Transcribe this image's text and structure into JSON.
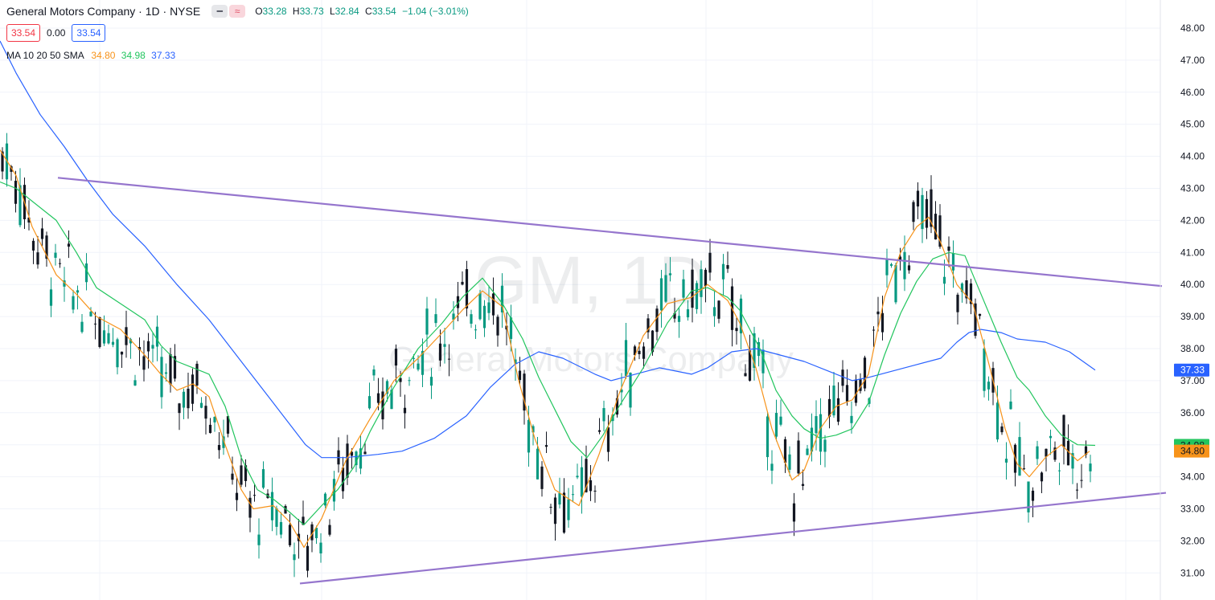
{
  "header": {
    "title": "General Motors Company · 1D · NYSE",
    "ohlc": {
      "o_label": "O",
      "o": "33.28",
      "h_label": "H",
      "h": "33.73",
      "l_label": "L",
      "l": "32.84",
      "c_label": "C",
      "c": "33.54",
      "change": "−1.04 (−3.01%)"
    },
    "bid": "33.54",
    "spread": "0.00",
    "ask": "33.54",
    "ma_label": "MA 10 20 50 SMA",
    "ma10": "34.80",
    "ma20": "34.98",
    "ma50": "37.33"
  },
  "watermark": {
    "ticker": "GM, 1D",
    "name": "General Motors Company"
  },
  "colors": {
    "up": "#089981",
    "down": "#131722",
    "ma10": "#f7931a",
    "ma20": "#22c55e",
    "ma50": "#2962ff",
    "trend": "#9575cd",
    "grid": "#f0f3fa"
  },
  "chart_data": {
    "type": "candlestick",
    "ylim": [
      30.6,
      48.3
    ],
    "y_ticks": [
      "48.00",
      "47.00",
      "46.00",
      "45.00",
      "44.00",
      "43.00",
      "42.00",
      "41.00",
      "40.00",
      "39.00",
      "38.00",
      "37.00",
      "36.00",
      "35.00",
      "34.00",
      "33.00",
      "32.00",
      "31.00"
    ],
    "ma10_path": [
      [
        0,
        44.2
      ],
      [
        20,
        43.4
      ],
      [
        40,
        41.8
      ],
      [
        70,
        40.3
      ],
      [
        95,
        39.7
      ],
      [
        120,
        39.0
      ],
      [
        150,
        38.6
      ],
      [
        180,
        37.8
      ],
      [
        200,
        37.2
      ],
      [
        220,
        36.7
      ],
      [
        240,
        36.9
      ],
      [
        260,
        36.5
      ],
      [
        280,
        35.0
      ],
      [
        300,
        33.6
      ],
      [
        315,
        33.0
      ],
      [
        340,
        33.1
      ],
      [
        360,
        32.6
      ],
      [
        378,
        31.8
      ],
      [
        400,
        32.7
      ],
      [
        430,
        34.5
      ],
      [
        460,
        35.8
      ],
      [
        490,
        37.0
      ],
      [
        520,
        37.7
      ],
      [
        550,
        38.5
      ],
      [
        575,
        39.2
      ],
      [
        600,
        39.8
      ],
      [
        625,
        39.3
      ],
      [
        645,
        37.0
      ],
      [
        665,
        35.2
      ],
      [
        690,
        33.6
      ],
      [
        720,
        33.1
      ],
      [
        745,
        34.7
      ],
      [
        770,
        36.6
      ],
      [
        800,
        38.4
      ],
      [
        830,
        39.4
      ],
      [
        860,
        39.6
      ],
      [
        880,
        40.0
      ],
      [
        905,
        39.5
      ],
      [
        920,
        38.8
      ],
      [
        940,
        37.4
      ],
      [
        960,
        35.5
      ],
      [
        985,
        33.9
      ],
      [
        1000,
        34.2
      ],
      [
        1020,
        35.5
      ],
      [
        1040,
        36.2
      ],
      [
        1060,
        36.4
      ],
      [
        1080,
        37.2
      ],
      [
        1100,
        39.6
      ],
      [
        1120,
        41.0
      ],
      [
        1140,
        41.8
      ],
      [
        1155,
        42.1
      ],
      [
        1170,
        41.3
      ],
      [
        1190,
        40.0
      ],
      [
        1210,
        39.4
      ],
      [
        1230,
        37.5
      ],
      [
        1250,
        35.5
      ],
      [
        1265,
        34.4
      ],
      [
        1280,
        34.0
      ],
      [
        1300,
        34.6
      ],
      [
        1320,
        35.0
      ],
      [
        1340,
        34.5
      ],
      [
        1355,
        34.8
      ]
    ],
    "ma20_path": [
      [
        0,
        43.2
      ],
      [
        20,
        43.0
      ],
      [
        40,
        42.6
      ],
      [
        70,
        42.0
      ],
      [
        95,
        41.0
      ],
      [
        120,
        39.9
      ],
      [
        150,
        39.4
      ],
      [
        180,
        38.9
      ],
      [
        200,
        38.1
      ],
      [
        220,
        37.6
      ],
      [
        240,
        37.4
      ],
      [
        260,
        37.2
      ],
      [
        280,
        36.2
      ],
      [
        300,
        34.6
      ],
      [
        320,
        33.6
      ],
      [
        340,
        33.3
      ],
      [
        360,
        32.9
      ],
      [
        378,
        32.5
      ],
      [
        400,
        33.1
      ],
      [
        420,
        33.6
      ],
      [
        440,
        34.3
      ],
      [
        460,
        35.4
      ],
      [
        490,
        36.8
      ],
      [
        520,
        38.0
      ],
      [
        550,
        38.8
      ],
      [
        575,
        39.6
      ],
      [
        600,
        40.2
      ],
      [
        625,
        39.4
      ],
      [
        650,
        38.3
      ],
      [
        670,
        37.1
      ],
      [
        690,
        36.1
      ],
      [
        710,
        35.1
      ],
      [
        730,
        34.6
      ],
      [
        750,
        35.3
      ],
      [
        770,
        36.2
      ],
      [
        800,
        37.4
      ],
      [
        830,
        38.8
      ],
      [
        860,
        39.8
      ],
      [
        880,
        39.9
      ],
      [
        905,
        39.6
      ],
      [
        920,
        39.2
      ],
      [
        945,
        38.0
      ],
      [
        965,
        36.7
      ],
      [
        985,
        35.9
      ],
      [
        1000,
        35.5
      ],
      [
        1020,
        35.2
      ],
      [
        1040,
        35.3
      ],
      [
        1060,
        35.5
      ],
      [
        1080,
        36.3
      ],
      [
        1100,
        37.8
      ],
      [
        1120,
        39.1
      ],
      [
        1140,
        40.1
      ],
      [
        1160,
        40.8
      ],
      [
        1180,
        41.0
      ],
      [
        1200,
        40.9
      ],
      [
        1220,
        39.7
      ],
      [
        1245,
        38.2
      ],
      [
        1265,
        37.1
      ],
      [
        1280,
        36.7
      ],
      [
        1300,
        35.9
      ],
      [
        1320,
        35.3
      ],
      [
        1340,
        35.0
      ],
      [
        1362,
        34.98
      ]
    ],
    "ma50_path": [
      [
        0,
        47.6
      ],
      [
        20,
        46.6
      ],
      [
        50,
        45.3
      ],
      [
        80,
        44.3
      ],
      [
        110,
        43.2
      ],
      [
        140,
        42.2
      ],
      [
        180,
        41.2
      ],
      [
        220,
        40.0
      ],
      [
        260,
        38.9
      ],
      [
        300,
        37.6
      ],
      [
        340,
        36.3
      ],
      [
        380,
        35.0
      ],
      [
        400,
        34.6
      ],
      [
        430,
        34.6
      ],
      [
        470,
        34.7
      ],
      [
        500,
        34.8
      ],
      [
        540,
        35.2
      ],
      [
        580,
        35.9
      ],
      [
        610,
        36.8
      ],
      [
        640,
        37.5
      ],
      [
        670,
        37.9
      ],
      [
        700,
        37.7
      ],
      [
        740,
        37.2
      ],
      [
        760,
        37.0
      ],
      [
        790,
        37.2
      ],
      [
        820,
        37.4
      ],
      [
        860,
        37.2
      ],
      [
        880,
        37.4
      ],
      [
        910,
        37.9
      ],
      [
        940,
        38.0
      ],
      [
        970,
        37.8
      ],
      [
        1000,
        37.6
      ],
      [
        1030,
        37.3
      ],
      [
        1060,
        37.0
      ],
      [
        1080,
        37.1
      ],
      [
        1110,
        37.3
      ],
      [
        1140,
        37.5
      ],
      [
        1170,
        37.7
      ],
      [
        1190,
        38.2
      ],
      [
        1205,
        38.5
      ],
      [
        1220,
        38.6
      ],
      [
        1245,
        38.5
      ],
      [
        1265,
        38.3
      ],
      [
        1300,
        38.2
      ],
      [
        1330,
        37.9
      ],
      [
        1362,
        37.33
      ]
    ],
    "trendlines": [
      {
        "x1": 72,
        "y1": 43.33,
        "x2": 1445,
        "y2": 39.95
      },
      {
        "x1": 373,
        "y1": 30.67,
        "x2": 1450,
        "y2": 33.5
      }
    ],
    "price_labels": [
      {
        "value": "37.33",
        "color": "#2962ff",
        "text_color": "#ffffff"
      },
      {
        "value": "34.98",
        "color": "#22c55e",
        "text_color": "#131722"
      },
      {
        "value": "34.80",
        "color": "#f7931a",
        "text_color": "#131722"
      }
    ]
  }
}
